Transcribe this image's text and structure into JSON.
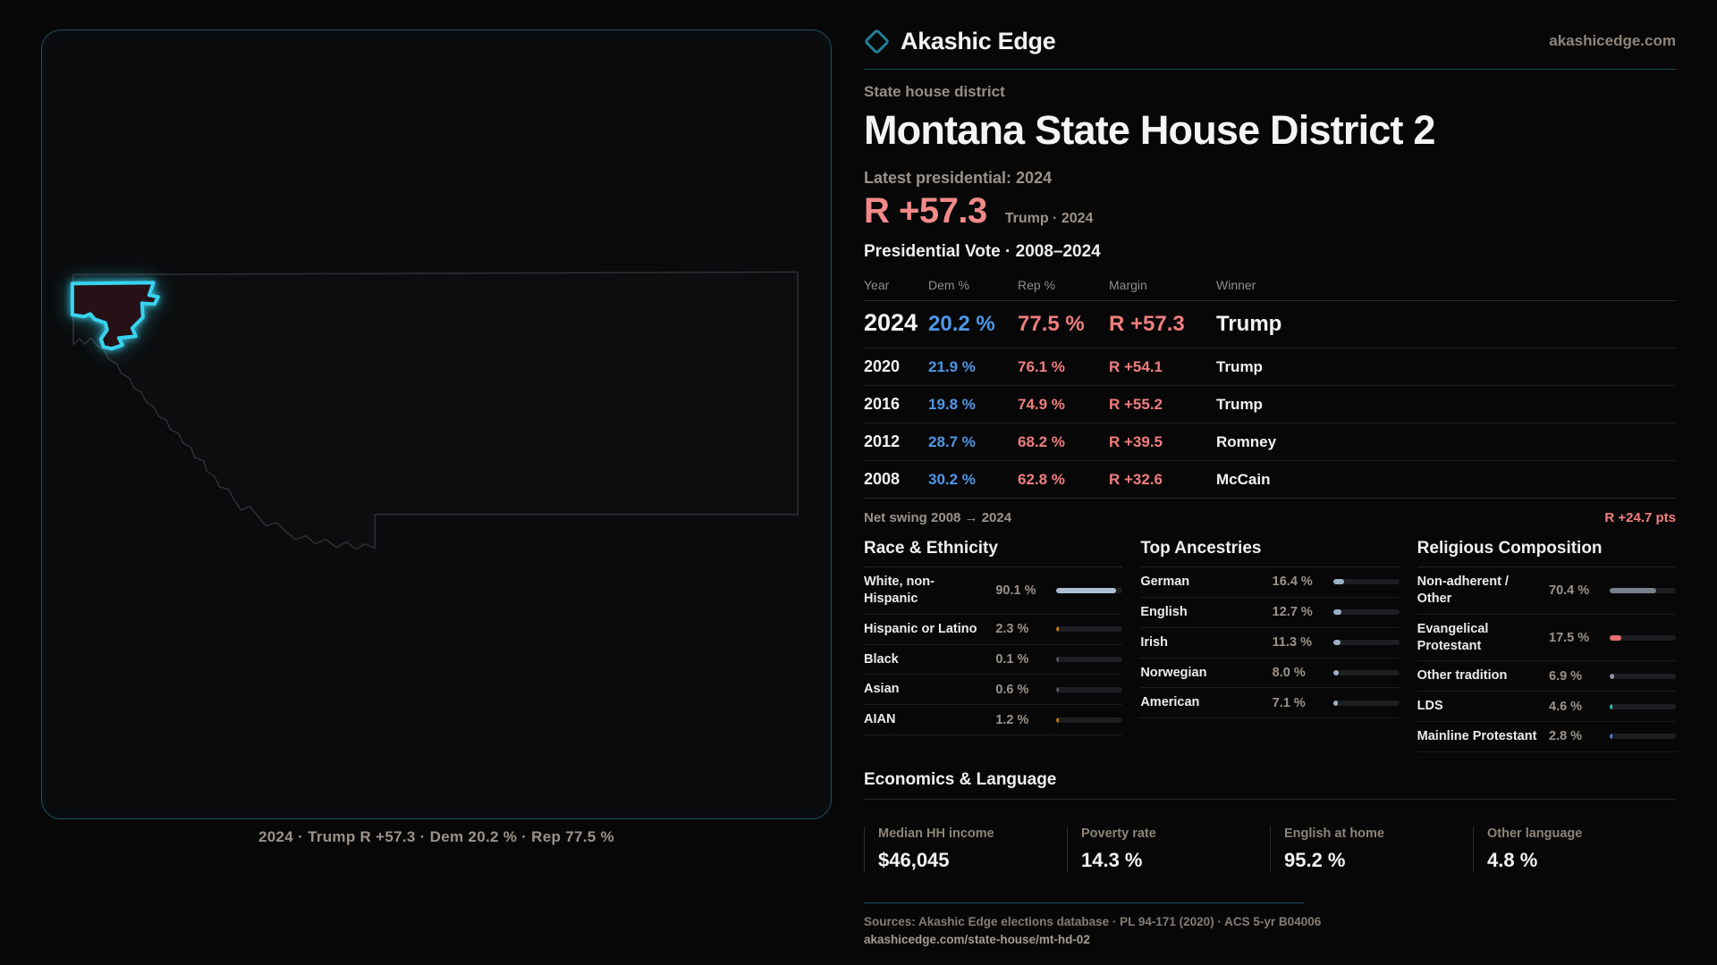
{
  "brand": {
    "name": "Akashic Edge",
    "domain": "akashicedge.com"
  },
  "colors": {
    "dem_blue": "#4f97e8",
    "rep_red": "#f17e7e",
    "district_cyan": "#38d3ee",
    "divider_teal": "#1c5260"
  },
  "page": {
    "kicker": "State house district",
    "title": "Montana State House District 2",
    "latest_label": "Latest presidential: 2024",
    "headline_margin": "R +57.3",
    "headline_context": "Trump · 2024"
  },
  "map": {
    "caption": "2024 · Trump R +57.3 · Dem 20.2 % · Rep 77.5 %"
  },
  "vote_table": {
    "title": "Presidential Vote · 2008–2024",
    "columns": [
      "Year",
      "Dem %",
      "Rep %",
      "Margin",
      "Winner"
    ],
    "rows": [
      {
        "year": "2024",
        "dem": "20.2 %",
        "rep": "77.5 %",
        "margin": "R +57.3",
        "winner": "Trump"
      },
      {
        "year": "2020",
        "dem": "21.9 %",
        "rep": "76.1 %",
        "margin": "R +54.1",
        "winner": "Trump"
      },
      {
        "year": "2016",
        "dem": "19.8 %",
        "rep": "74.9 %",
        "margin": "R +55.2",
        "winner": "Trump"
      },
      {
        "year": "2012",
        "dem": "28.7 %",
        "rep": "68.2 %",
        "margin": "R +39.5",
        "winner": "Romney"
      },
      {
        "year": "2008",
        "dem": "30.2 %",
        "rep": "62.8 %",
        "margin": "R +32.6",
        "winner": "McCain"
      }
    ],
    "net_swing_label": "Net swing 2008 → 2024",
    "net_swing_value": "R +24.7 pts"
  },
  "demographics": {
    "race": {
      "title": "Race & Ethnicity",
      "rows": [
        {
          "label": "White, non-Hispanic",
          "value": "90.1 %",
          "pct": 90.1,
          "color": "#aebfd3"
        },
        {
          "label": "Hispanic or Latino",
          "value": "2.3 %",
          "pct": 2.3,
          "color": "#b97718"
        },
        {
          "label": "Black",
          "value": "0.1 %",
          "pct": 0.1,
          "color": "#55565c"
        },
        {
          "label": "Asian",
          "value": "0.6 %",
          "pct": 0.6,
          "color": "#55565c"
        },
        {
          "label": "AIAN",
          "value": "1.2 %",
          "pct": 1.2,
          "color": "#b97718"
        }
      ]
    },
    "ancestries": {
      "title": "Top Ancestries",
      "rows": [
        {
          "label": "German",
          "value": "16.4 %",
          "pct": 16.4,
          "color": "#9db1c6"
        },
        {
          "label": "English",
          "value": "12.7 %",
          "pct": 12.7,
          "color": "#9db1c6"
        },
        {
          "label": "Irish",
          "value": "11.3 %",
          "pct": 11.3,
          "color": "#9db1c6"
        },
        {
          "label": "Norwegian",
          "value": "8.0 %",
          "pct": 8.0,
          "color": "#9db1c6"
        },
        {
          "label": "American",
          "value": "7.1 %",
          "pct": 7.1,
          "color": "#9db1c6"
        }
      ]
    },
    "religion": {
      "title": "Religious Composition",
      "rows": [
        {
          "label": "Non-adherent / Other",
          "value": "70.4 %",
          "pct": 70.4,
          "color": "#787f8a"
        },
        {
          "label": "Evangelical Protestant",
          "value": "17.5 %",
          "pct": 17.5,
          "color": "#e76f6f"
        },
        {
          "label": "Other tradition",
          "value": "6.9 %",
          "pct": 6.9,
          "color": "#8f9099"
        },
        {
          "label": "LDS",
          "value": "4.6 %",
          "pct": 4.6,
          "color": "#2bbfa9"
        },
        {
          "label": "Mainline Protestant",
          "value": "2.8 %",
          "pct": 2.8,
          "color": "#477fd9"
        }
      ]
    }
  },
  "economics": {
    "title": "Economics & Language",
    "stats": [
      {
        "label": "Median HH income",
        "value": "$46,045"
      },
      {
        "label": "Poverty rate",
        "value": "14.3 %"
      },
      {
        "label": "English at home",
        "value": "95.2 %"
      },
      {
        "label": "Other language",
        "value": "4.8 %"
      }
    ]
  },
  "footer": {
    "sources": "Sources: Akashic Edge elections database · PL 94-171 (2020) · ACS 5-yr B04006",
    "permalink": "akashicedge.com/state-house/mt-hd-02"
  }
}
